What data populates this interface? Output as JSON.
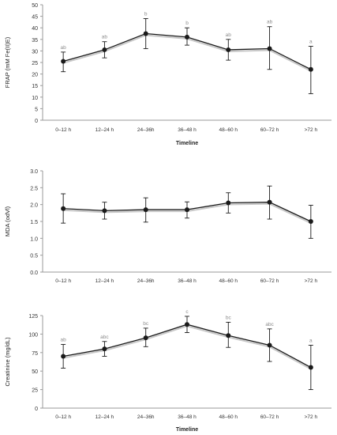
{
  "chart_data": [
    {
      "type": "line",
      "xlabel": "Timeline",
      "ylabel": "FRAP (mM Fe(II)E)",
      "categories": [
        "0–12 h",
        "12–24 h",
        "24–36h",
        "36–48 h",
        "48–60 h",
        "60–72 h",
        ">72 h"
      ],
      "values": [
        25.5,
        30.5,
        37.5,
        36.0,
        30.5,
        31.0,
        22.0
      ],
      "error_low": [
        21.0,
        27.0,
        31.0,
        32.5,
        26.0,
        22.0,
        11.5
      ],
      "error_high": [
        29.5,
        34.0,
        44.0,
        40.0,
        35.0,
        40.5,
        32.0
      ],
      "significance_labels": [
        "ab",
        "ab",
        "b",
        "b",
        "ab",
        "ab",
        "a"
      ],
      "ylim": [
        0,
        50
      ],
      "yticks": [
        0,
        5,
        10,
        15,
        20,
        25,
        30,
        35,
        40,
        45,
        50
      ],
      "grid": false,
      "line_color": "#1a1a1a",
      "label_color": "#8c8c8c"
    },
    {
      "type": "line",
      "xlabel": "",
      "ylabel": "MDA (odVl)",
      "categories": [
        "0–12 h",
        "12–24 h",
        "24–36h",
        "36–48 h",
        "48–60 h",
        "60–72 h",
        ">72 h"
      ],
      "values": [
        1.88,
        1.82,
        1.85,
        1.85,
        2.05,
        2.07,
        1.5
      ],
      "error_low": [
        1.45,
        1.57,
        1.48,
        1.6,
        1.75,
        1.57,
        1.0
      ],
      "error_high": [
        2.32,
        2.07,
        2.2,
        2.08,
        2.35,
        2.55,
        1.98
      ],
      "significance_labels": [],
      "ylim": [
        0,
        3
      ],
      "yticks": [
        0.0,
        0.5,
        1.0,
        1.5,
        2.0,
        2.5,
        3.0
      ],
      "ytick_labels": [
        "0.0",
        "0.5",
        "1.0",
        "1.5",
        "2.0",
        "2.5",
        "3.0"
      ],
      "grid": false,
      "line_color": "#1a1a1a"
    },
    {
      "type": "line",
      "xlabel": "Timeline",
      "ylabel": "Creatinine (mg/dL)",
      "categories": [
        "0–12 h",
        "12–24 h",
        "24–36h",
        "36–48 h",
        "48–60 h",
        "60–72 h",
        ">72 h"
      ],
      "values": [
        70,
        80,
        95,
        113,
        98,
        85,
        55
      ],
      "error_low": [
        54,
        70,
        83,
        102,
        82,
        63,
        25
      ],
      "error_high": [
        86,
        90,
        108,
        124,
        116,
        107,
        85
      ],
      "significance_labels": [
        "ab",
        "abc",
        "bc",
        "c",
        "bc",
        "abc",
        "a"
      ],
      "ylim": [
        0,
        125
      ],
      "yticks": [
        0,
        25,
        50,
        75,
        100,
        125
      ],
      "grid": false,
      "line_color": "#1a1a1a",
      "label_color": "#8c8c8c"
    }
  ]
}
